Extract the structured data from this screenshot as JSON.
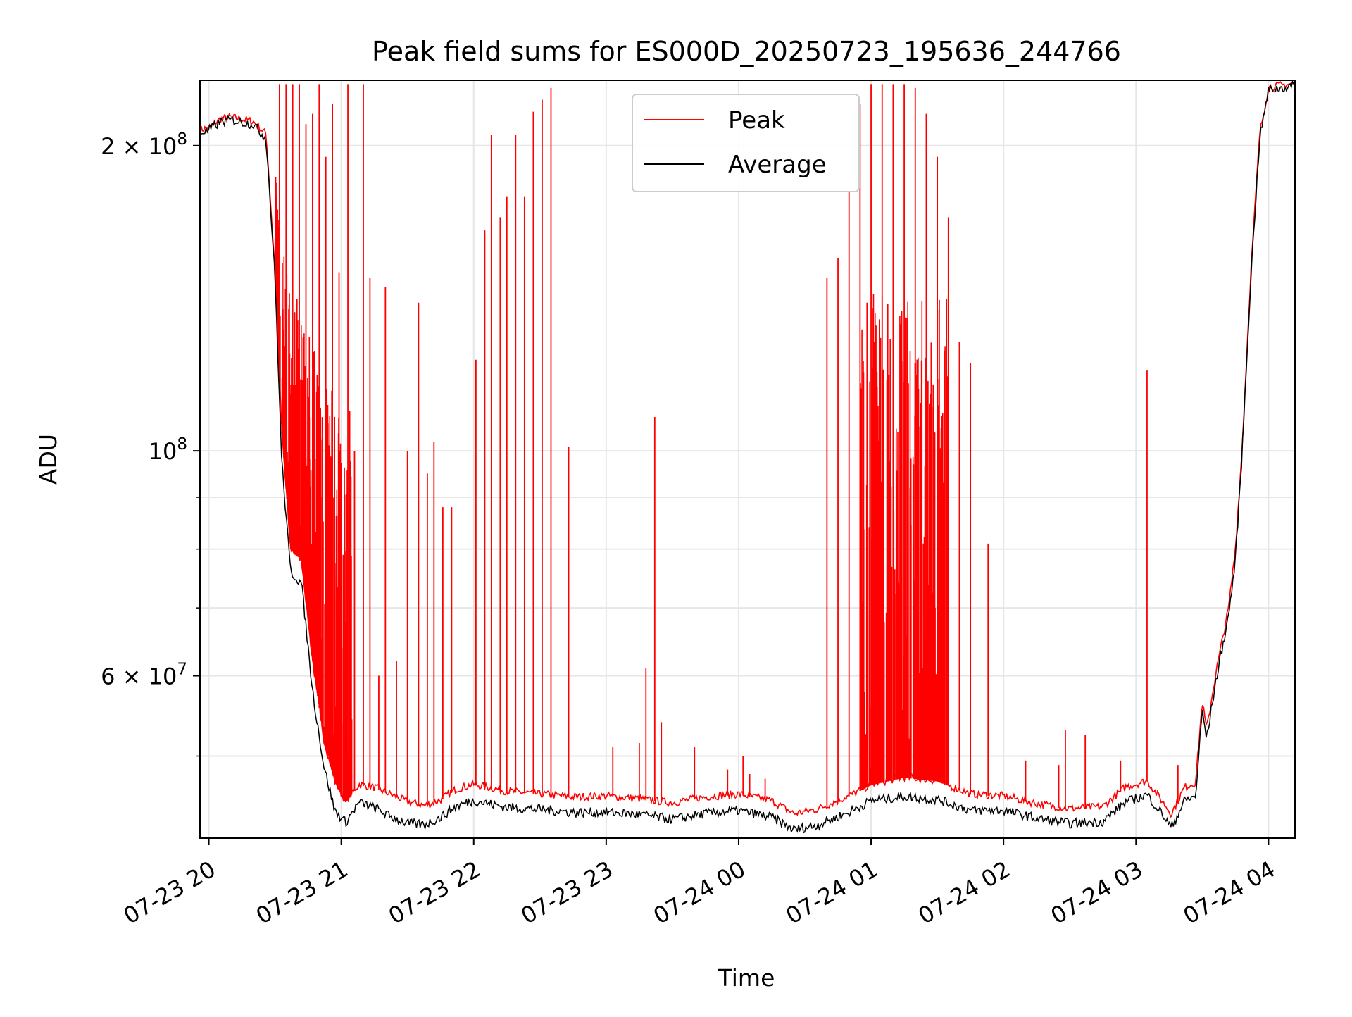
{
  "chart_data": {
    "type": "line",
    "title": "Peak field sums for ES000D_20250723_195636_244766",
    "xlabel": "Time",
    "ylabel": "ADU",
    "y_scale": "log",
    "grid": true,
    "legend_position": "top-center",
    "xlim": [
      "2025-07-23 19:56",
      "2025-07-24 04:12"
    ],
    "ylim": [
      41500000,
      232000000
    ],
    "x_ticks": [
      {
        "time": "2025-07-23 20:00",
        "label": "07-23 20"
      },
      {
        "time": "2025-07-23 21:00",
        "label": "07-23 21"
      },
      {
        "time": "2025-07-23 22:00",
        "label": "07-23 22"
      },
      {
        "time": "2025-07-23 23:00",
        "label": "07-23 23"
      },
      {
        "time": "2025-07-24 00:00",
        "label": "07-24 00"
      },
      {
        "time": "2025-07-24 01:00",
        "label": "07-24 01"
      },
      {
        "time": "2025-07-24 02:00",
        "label": "07-24 02"
      },
      {
        "time": "2025-07-24 03:00",
        "label": "07-24 03"
      },
      {
        "time": "2025-07-24 04:00",
        "label": "07-24 04"
      }
    ],
    "y_ticks": [
      {
        "value": 200000000,
        "base": "2 × 10",
        "exp": "8"
      },
      {
        "value": 100000000,
        "base": "10",
        "exp": "8"
      },
      {
        "value": 60000000,
        "base": "6 × 10",
        "exp": "7"
      }
    ],
    "y_minor_ticks": [
      50000000,
      70000000,
      80000000,
      90000000
    ],
    "series": [
      {
        "name": "Peak",
        "color": "#ff0000",
        "baseline": [
          [
            "2025-07-23 19:56",
            207000000
          ],
          [
            "2025-07-23 20:00",
            208000000
          ],
          [
            "2025-07-23 20:05",
            212000000
          ],
          [
            "2025-07-23 20:10",
            213000000
          ],
          [
            "2025-07-23 20:20",
            211000000
          ],
          [
            "2025-07-23 20:26",
            205000000
          ],
          [
            "2025-07-23 20:30",
            150000000
          ],
          [
            "2025-07-23 20:33",
            105000000
          ],
          [
            "2025-07-23 20:37",
            80000000
          ],
          [
            "2025-07-23 20:42",
            78000000
          ],
          [
            "2025-07-23 20:47",
            62000000
          ],
          [
            "2025-07-23 20:52",
            52000000
          ],
          [
            "2025-07-23 20:57",
            47200000
          ],
          [
            "2025-07-23 21:02",
            45000000
          ],
          [
            "2025-07-23 21:08",
            46800000
          ],
          [
            "2025-07-23 21:15",
            46500000
          ],
          [
            "2025-07-23 21:22",
            45800000
          ],
          [
            "2025-07-23 21:30",
            45000000
          ],
          [
            "2025-07-23 21:38",
            44600000
          ],
          [
            "2025-07-23 21:45",
            45200000
          ],
          [
            "2025-07-23 21:52",
            46300000
          ],
          [
            "2025-07-23 22:00",
            46800000
          ],
          [
            "2025-07-23 22:15",
            46100000
          ],
          [
            "2025-07-23 22:30",
            45800000
          ],
          [
            "2025-07-23 22:45",
            45500000
          ],
          [
            "2025-07-23 23:00",
            45600000
          ],
          [
            "2025-07-23 23:15",
            45300000
          ],
          [
            "2025-07-23 23:30",
            44900000
          ],
          [
            "2025-07-23 23:45",
            45500000
          ],
          [
            "2025-07-24 00:00",
            45800000
          ],
          [
            "2025-07-24 00:15",
            45100000
          ],
          [
            "2025-07-24 00:25",
            43800000
          ],
          [
            "2025-07-24 00:35",
            44200000
          ],
          [
            "2025-07-24 00:50",
            45600000
          ],
          [
            "2025-07-24 01:00",
            46800000
          ],
          [
            "2025-07-24 01:15",
            47600000
          ],
          [
            "2025-07-24 01:30",
            47200000
          ],
          [
            "2025-07-24 01:45",
            45800000
          ],
          [
            "2025-07-24 02:00",
            45600000
          ],
          [
            "2025-07-24 02:15",
            44800000
          ],
          [
            "2025-07-24 02:30",
            44300000
          ],
          [
            "2025-07-24 02:45",
            44500000
          ],
          [
            "2025-07-24 02:55",
            46500000
          ],
          [
            "2025-07-24 03:05",
            47200000
          ],
          [
            "2025-07-24 03:12",
            45000000
          ],
          [
            "2025-07-24 03:16",
            43800000
          ],
          [
            "2025-07-24 03:22",
            46500000
          ],
          [
            "2025-07-24 03:27",
            47000000
          ],
          [
            "2025-07-24 03:30",
            56500000
          ],
          [
            "2025-07-24 03:32",
            53000000
          ],
          [
            "2025-07-24 03:36",
            60000000
          ],
          [
            "2025-07-24 03:42",
            70000000
          ],
          [
            "2025-07-24 03:45",
            80000000
          ],
          [
            "2025-07-24 03:48",
            100000000
          ],
          [
            "2025-07-24 03:52",
            150000000
          ],
          [
            "2025-07-24 03:56",
            205000000
          ],
          [
            "2025-07-24 04:00",
            228000000
          ],
          [
            "2025-07-24 04:12",
            230000000
          ]
        ],
        "spikes": [
          [
            "2025-07-23 20:32",
            230000000
          ],
          [
            "2025-07-23 20:35",
            230000000
          ],
          [
            "2025-07-23 20:38",
            230000000
          ],
          [
            "2025-07-23 20:41",
            230000000
          ],
          [
            "2025-07-23 20:44",
            210000000
          ],
          [
            "2025-07-23 20:47",
            215000000
          ],
          [
            "2025-07-23 20:50",
            230000000
          ],
          [
            "2025-07-23 20:53",
            195000000
          ],
          [
            "2025-07-23 20:56",
            220000000
          ],
          [
            "2025-07-23 20:59",
            150000000
          ],
          [
            "2025-07-23 21:03",
            230000000
          ],
          [
            "2025-07-23 21:06",
            100000000
          ],
          [
            "2025-07-23 21:10",
            230000000
          ],
          [
            "2025-07-23 21:13",
            148000000
          ],
          [
            "2025-07-23 21:17",
            60000000
          ],
          [
            "2025-07-23 21:20",
            145000000
          ],
          [
            "2025-07-23 21:25",
            62000000
          ],
          [
            "2025-07-23 21:30",
            100000000
          ],
          [
            "2025-07-23 21:35",
            140000000
          ],
          [
            "2025-07-23 21:39",
            95000000
          ],
          [
            "2025-07-23 21:42",
            102000000
          ],
          [
            "2025-07-23 21:46",
            88000000
          ],
          [
            "2025-07-23 21:50",
            88000000
          ],
          [
            "2025-07-23 22:01",
            123000000
          ],
          [
            "2025-07-23 22:05",
            165000000
          ],
          [
            "2025-07-23 22:08",
            205000000
          ],
          [
            "2025-07-23 22:12",
            170000000
          ],
          [
            "2025-07-23 22:15",
            178000000
          ],
          [
            "2025-07-23 22:19",
            205000000
          ],
          [
            "2025-07-23 22:23",
            178000000
          ],
          [
            "2025-07-23 22:27",
            216000000
          ],
          [
            "2025-07-23 22:31",
            222000000
          ],
          [
            "2025-07-23 22:35",
            228000000
          ],
          [
            "2025-07-23 22:43",
            101000000
          ],
          [
            "2025-07-23 23:03",
            51000000
          ],
          [
            "2025-07-23 23:15",
            51500000
          ],
          [
            "2025-07-23 23:18",
            61000000
          ],
          [
            "2025-07-23 23:22",
            108000000
          ],
          [
            "2025-07-23 23:25",
            54000000
          ],
          [
            "2025-07-23 23:40",
            51000000
          ],
          [
            "2025-07-23 23:55",
            48500000
          ],
          [
            "2025-07-24 00:02",
            50000000
          ],
          [
            "2025-07-24 00:05",
            48000000
          ],
          [
            "2025-07-24 00:12",
            47500000
          ],
          [
            "2025-07-24 00:40",
            148000000
          ],
          [
            "2025-07-24 00:45",
            155000000
          ],
          [
            "2025-07-24 00:50",
            180000000
          ],
          [
            "2025-07-24 00:55",
            220000000
          ],
          [
            "2025-07-24 01:00",
            230000000
          ],
          [
            "2025-07-24 01:05",
            230000000
          ],
          [
            "2025-07-24 01:10",
            230000000
          ],
          [
            "2025-07-24 01:15",
            230000000
          ],
          [
            "2025-07-24 01:20",
            228000000
          ],
          [
            "2025-07-24 01:25",
            215000000
          ],
          [
            "2025-07-24 01:30",
            195000000
          ],
          [
            "2025-07-24 01:35",
            170000000
          ],
          [
            "2025-07-24 01:40",
            128000000
          ],
          [
            "2025-07-24 01:45",
            122000000
          ],
          [
            "2025-07-24 01:53",
            81000000
          ],
          [
            "2025-07-24 02:10",
            49500000
          ],
          [
            "2025-07-24 02:25",
            49000000
          ],
          [
            "2025-07-24 02:28",
            53000000
          ],
          [
            "2025-07-24 02:37",
            52500000
          ],
          [
            "2025-07-24 02:53",
            49500000
          ],
          [
            "2025-07-24 03:05",
            120000000
          ],
          [
            "2025-07-24 03:19",
            49000000
          ]
        ]
      },
      {
        "name": "Average",
        "color": "#000000",
        "values": [
          [
            "2025-07-23 19:56",
            206000000
          ],
          [
            "2025-07-23 20:00",
            207000000
          ],
          [
            "2025-07-23 20:05",
            211000000
          ],
          [
            "2025-07-23 20:10",
            212000000
          ],
          [
            "2025-07-23 20:20",
            210000000
          ],
          [
            "2025-07-23 20:26",
            203000000
          ],
          [
            "2025-07-23 20:30",
            148000000
          ],
          [
            "2025-07-23 20:33",
            98000000
          ],
          [
            "2025-07-23 20:37",
            76000000
          ],
          [
            "2025-07-23 20:42",
            74000000
          ],
          [
            "2025-07-23 20:47",
            58000000
          ],
          [
            "2025-07-23 20:52",
            49000000
          ],
          [
            "2025-07-23 20:57",
            44200000
          ],
          [
            "2025-07-23 21:02",
            43000000
          ],
          [
            "2025-07-23 21:08",
            45000000
          ],
          [
            "2025-07-23 21:15",
            44500000
          ],
          [
            "2025-07-23 21:22",
            43600000
          ],
          [
            "2025-07-23 21:30",
            42900000
          ],
          [
            "2025-07-23 21:38",
            42800000
          ],
          [
            "2025-07-23 21:45",
            43500000
          ],
          [
            "2025-07-23 21:52",
            44600000
          ],
          [
            "2025-07-23 22:00",
            45200000
          ],
          [
            "2025-07-23 22:15",
            44500000
          ],
          [
            "2025-07-23 22:30",
            44300000
          ],
          [
            "2025-07-23 22:45",
            44000000
          ],
          [
            "2025-07-23 23:00",
            44000000
          ],
          [
            "2025-07-23 23:15",
            43800000
          ],
          [
            "2025-07-23 23:30",
            43300000
          ],
          [
            "2025-07-23 23:45",
            43900000
          ],
          [
            "2025-07-24 00:00",
            44200000
          ],
          [
            "2025-07-24 00:15",
            43500000
          ],
          [
            "2025-07-24 00:25",
            42300000
          ],
          [
            "2025-07-24 00:35",
            42700000
          ],
          [
            "2025-07-24 00:50",
            44000000
          ],
          [
            "2025-07-24 01:00",
            45200000
          ],
          [
            "2025-07-24 01:15",
            45600000
          ],
          [
            "2025-07-24 01:30",
            45300000
          ],
          [
            "2025-07-24 01:45",
            44200000
          ],
          [
            "2025-07-24 02:00",
            44200000
          ],
          [
            "2025-07-24 02:15",
            43400000
          ],
          [
            "2025-07-24 02:30",
            42900000
          ],
          [
            "2025-07-24 02:45",
            43100000
          ],
          [
            "2025-07-24 02:55",
            45000000
          ],
          [
            "2025-07-24 03:05",
            45800000
          ],
          [
            "2025-07-24 03:12",
            43800000
          ],
          [
            "2025-07-24 03:16",
            42500000
          ],
          [
            "2025-07-24 03:22",
            45200000
          ],
          [
            "2025-07-24 03:27",
            45600000
          ],
          [
            "2025-07-24 03:30",
            55500000
          ],
          [
            "2025-07-24 03:32",
            52000000
          ],
          [
            "2025-07-24 03:36",
            59000000
          ],
          [
            "2025-07-24 03:42",
            69000000
          ],
          [
            "2025-07-24 03:45",
            78000000
          ],
          [
            "2025-07-24 03:48",
            99000000
          ],
          [
            "2025-07-24 03:52",
            148000000
          ],
          [
            "2025-07-24 03:56",
            203000000
          ],
          [
            "2025-07-24 04:00",
            227000000
          ],
          [
            "2025-07-24 04:12",
            229000000
          ]
        ]
      }
    ]
  }
}
